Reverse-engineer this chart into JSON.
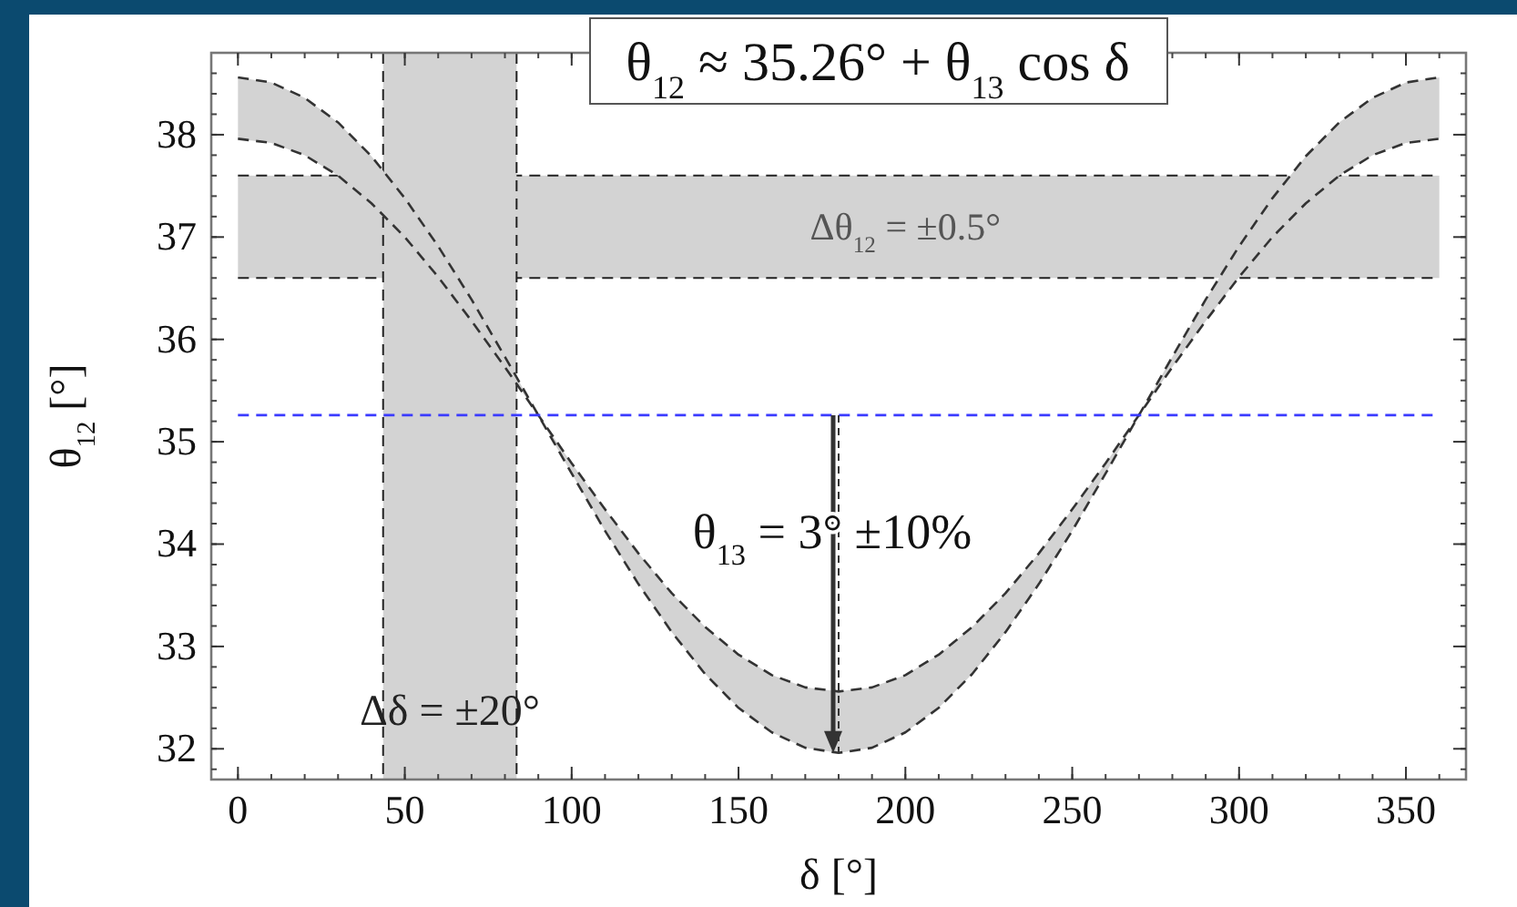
{
  "chart_data": {
    "type": "line",
    "title": "θ$_{12}$ ≈ 35.26° + θ$_{13}$ cos δ",
    "xlabel": "δ [°]",
    "ylabel": "θ$_{12}$ [°]",
    "x": [
      0,
      10,
      20,
      30,
      40,
      50,
      60,
      70,
      80,
      90,
      100,
      110,
      120,
      130,
      140,
      150,
      160,
      170,
      180,
      190,
      200,
      210,
      220,
      230,
      240,
      250,
      260,
      270,
      280,
      290,
      300,
      310,
      320,
      330,
      340,
      350,
      360
    ],
    "series": [
      {
        "color": "#333333",
        "values": [
          38.56,
          38.51,
          38.36,
          38.12,
          37.79,
          37.38,
          36.91,
          36.39,
          35.83,
          35.26,
          34.69,
          34.13,
          33.61,
          33.14,
          32.73,
          32.4,
          32.16,
          32.01,
          31.96,
          32.01,
          32.16,
          32.4,
          32.73,
          33.14,
          33.61,
          34.13,
          34.69,
          35.26,
          35.83,
          36.39,
          36.91,
          37.38,
          37.79,
          38.12,
          38.36,
          38.51,
          38.56
        ]
      },
      {
        "color": "#333333",
        "values": [
          37.96,
          37.92,
          37.8,
          37.6,
          37.33,
          37.0,
          36.61,
          36.18,
          35.73,
          35.26,
          34.79,
          34.34,
          33.91,
          33.52,
          33.19,
          32.92,
          32.72,
          32.6,
          32.56,
          32.6,
          32.72,
          32.92,
          33.19,
          33.52,
          33.91,
          34.34,
          34.79,
          35.26,
          35.73,
          36.18,
          36.61,
          37.0,
          37.33,
          37.6,
          37.8,
          37.92,
          37.96
        ]
      }
    ],
    "line_style": "dashed",
    "xlim": [
      -8,
      368
    ],
    "ylim": [
      31.7,
      38.8
    ],
    "xticks": [
      0,
      50,
      100,
      150,
      200,
      250,
      300,
      350
    ],
    "yticks": [
      32,
      33,
      34,
      35,
      36,
      37,
      38
    ],
    "bands": [
      {
        "axis": "y",
        "from": 36.6,
        "to": 37.6,
        "label": "Δθ$_{12}$ = ±0.5°",
        "color": "#d3d3d3"
      },
      {
        "axis": "x",
        "from": 43.5,
        "to": 83.5,
        "label": "Δδ = ±20°",
        "color": "#d3d3d3"
      }
    ],
    "ref_lines": [
      {
        "axis": "y",
        "value": 35.26,
        "color": "#3b3bff",
        "line_style": "dashed"
      }
    ],
    "annotations": [
      "θ$_{13}$ = 3° ±10%"
    ]
  }
}
